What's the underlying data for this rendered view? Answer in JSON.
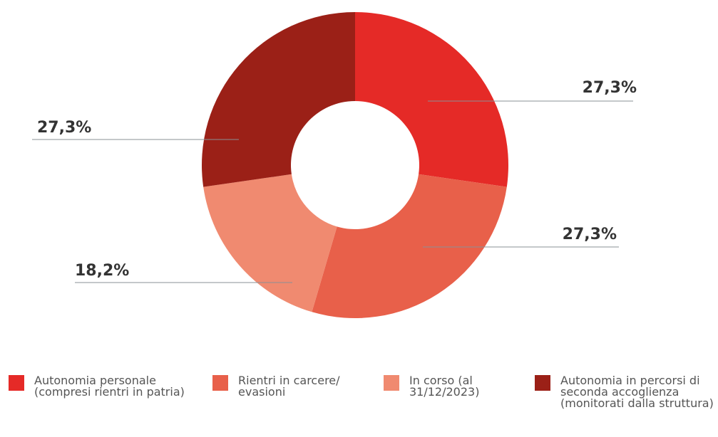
{
  "chart_data": {
    "type": "donut",
    "categories": [
      "Autonomia personale (compresi rientri in patria)",
      "Rientri in carcere/ evasioni",
      "In corso (al 31/12/2023)",
      "Autonomia in percorsi di seconda accoglienza (monitorati dalla struttura)"
    ],
    "values": [
      27.3,
      27.3,
      18.2,
      27.3
    ],
    "value_labels": [
      "27,3%",
      "27,3%",
      "18,2%",
      "27,3%"
    ],
    "colors": [
      "#e52a27",
      "#e8604a",
      "#f08a70",
      "#9b2017"
    ]
  }
}
